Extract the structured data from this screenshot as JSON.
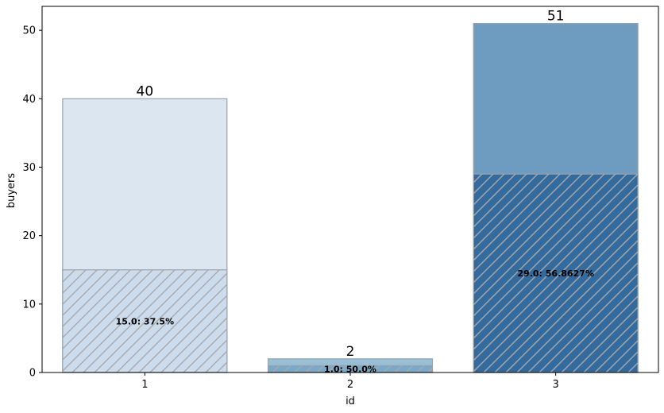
{
  "chart_data": {
    "type": "bar",
    "xlabel": "id",
    "ylabel": "buyers",
    "ylim": [
      0,
      53.5
    ],
    "yticks": [
      0,
      10,
      20,
      30,
      40,
      50
    ],
    "grid": false,
    "categories": [
      "1",
      "2",
      "3"
    ],
    "totals": [
      40,
      2,
      51
    ],
    "subset_values": [
      15.0,
      1.0,
      29.0
    ],
    "total_labels": [
      "40",
      "2",
      "51"
    ],
    "subset_labels": [
      "15.0: 37.5%",
      "1.0: 50.0%",
      "29.0: 56.8627%"
    ],
    "colors": {
      "total": [
        "#dce6f1",
        "#98bfd6",
        "#6e9bc0"
      ],
      "subset": [
        "#cddced",
        "#7aa8c8",
        "#336b9f"
      ],
      "edge": "#9aa3ad",
      "hatch": "#a8a8a8"
    }
  }
}
